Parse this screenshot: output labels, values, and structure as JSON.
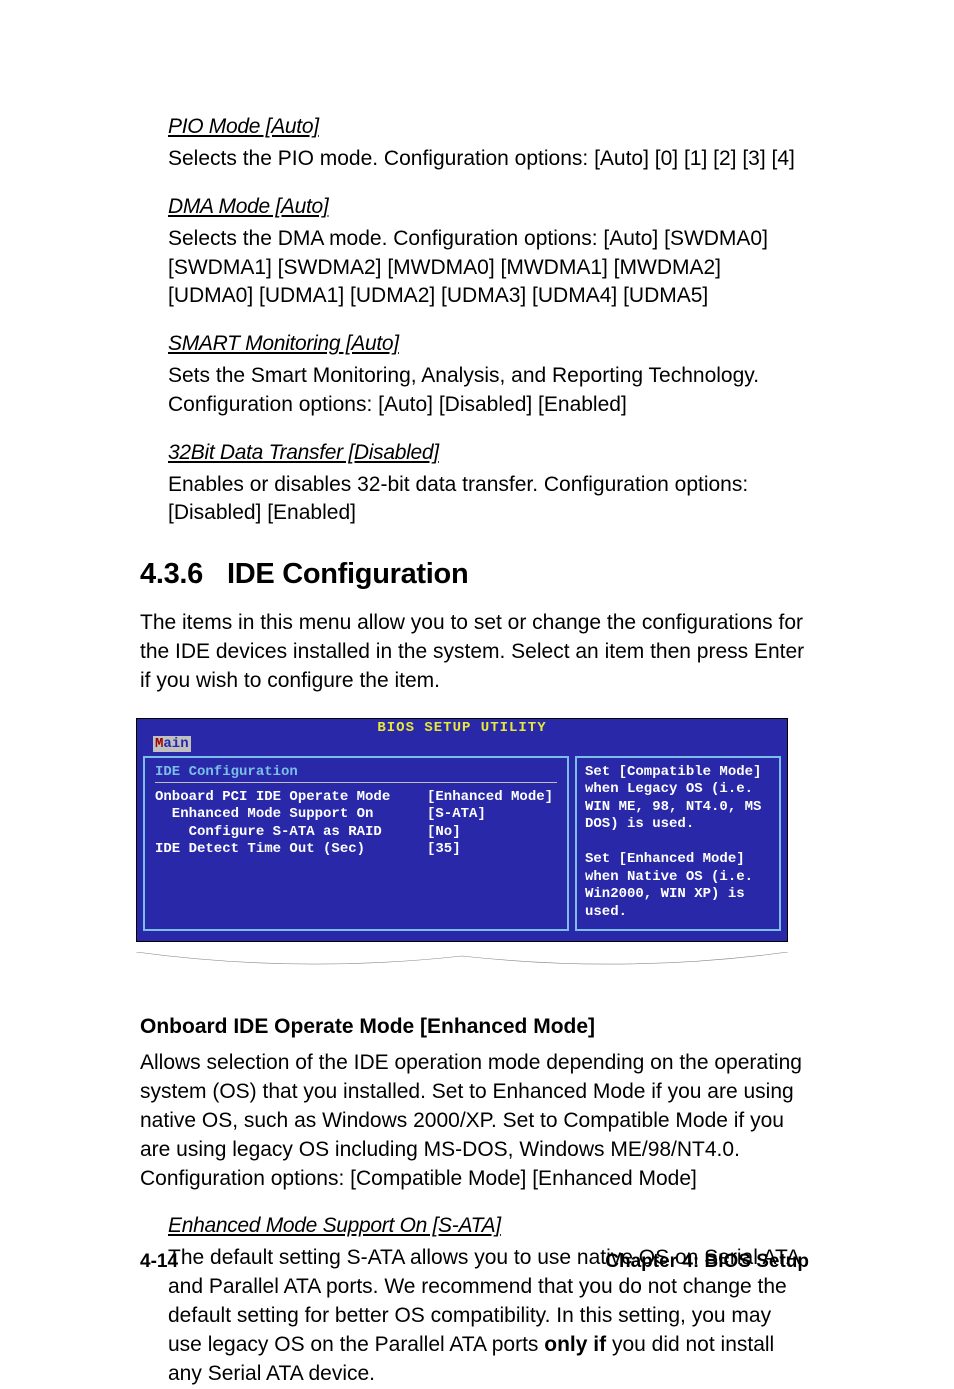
{
  "settings": {
    "pio": {
      "title": "PIO Mode [Auto]",
      "body": "Selects the PIO mode. Configuration options: [Auto] [0] [1] [2] [3] [4]"
    },
    "dma": {
      "title": "DMA Mode [Auto]",
      "body": "Selects the DMA mode. Configuration options: [Auto] [SWDMA0] [SWDMA1] [SWDMA2] [MWDMA0] [MWDMA1] [MWDMA2] [UDMA0] [UDMA1] [UDMA2] [UDMA3] [UDMA4] [UDMA5]"
    },
    "smart": {
      "title": "SMART Monitoring [Auto]",
      "body": "Sets the Smart Monitoring, Analysis, and Reporting Technology. Configuration options: [Auto] [Disabled] [Enabled]"
    },
    "bit32": {
      "title": "32Bit Data Transfer [Disabled]",
      "body": "Enables or disables 32-bit data transfer. Configuration options: [Disabled] [Enabled]"
    }
  },
  "section": {
    "number": "4.3.6",
    "title": "IDE Configuration",
    "intro": "The items in this menu allow you to set or change the configurations for the IDE devices installed in the system. Select an item then press Enter if you wish to configure the item."
  },
  "bios": {
    "title": "BIOS SETUP UTILITY",
    "tab_first": "M",
    "tab_rest": "ain",
    "panel_title": "IDE Configuration",
    "colors": {
      "bg": "#2828a8",
      "title": "#e8e83a",
      "border": "#7bbfe8",
      "text": "#ffffff",
      "tab_bg": "#c0c0c0",
      "tab_accent": "#a00000"
    },
    "rows": [
      {
        "label": "Onboard PCI IDE Operate Mode",
        "value": "[Enhanced Mode]"
      },
      {
        "label": "  Enhanced Mode Support On",
        "value": "[S-ATA]"
      },
      {
        "label": "    Configure S-ATA as RAID",
        "value": "[No]"
      },
      {
        "label": "IDE Detect Time Out (Sec)",
        "value": "[35]"
      }
    ],
    "help": "Set [Compatible Mode] when Legacy OS (i.e. WIN ME, 98, NT4.0, MS DOS) is used.\n\nSet [Enhanced Mode] when Native OS (i.e. Win2000, WIN XP) is used."
  },
  "onboard": {
    "heading": "Onboard IDE Operate Mode [Enhanced Mode]",
    "body": "Allows selection of the IDE operation mode depending on the operating system (OS) that you installed. Set to Enhanced Mode if you are using native OS, such as Windows 2000/XP. Set to Compatible Mode if you are using legacy OS including MS-DOS, Windows ME/98/NT4.0. Configuration options: [Compatible Mode] [Enhanced Mode]"
  },
  "enhanced": {
    "title": "Enhanced Mode Support On [S-ATA]",
    "body_pre": "The default setting S-ATA allows you to use native OS on Serial ATA and Parallel ATA ports. We recommend that you do not change the default setting for better OS compatibility. In this setting, you may use legacy OS on the Parallel ATA ports ",
    "body_bold": "only if",
    "body_post": " you did not install any Serial ATA device."
  },
  "footer": {
    "page": "4-14",
    "chapter": "Chapter 4: BIOS Setup"
  }
}
